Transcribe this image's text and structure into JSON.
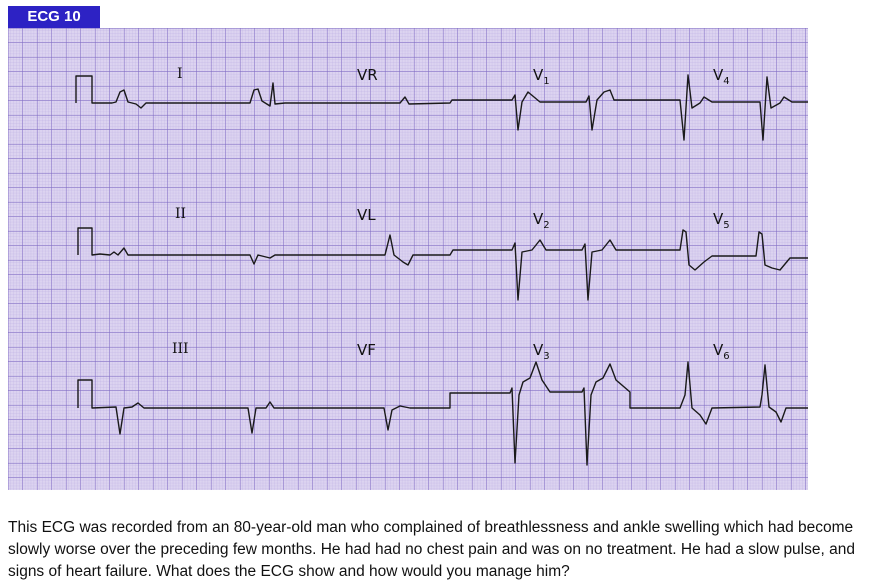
{
  "figure": {
    "title": "ECG 10",
    "colors": {
      "title_box": "#2d22c4",
      "paper": "#dcd3f0",
      "grid_minor": "#b8a9e0",
      "grid_major": "#7b66c0",
      "trace": "#1a1a1a"
    },
    "leads": [
      {
        "name": "I"
      },
      {
        "name": "VR"
      },
      {
        "name": "V",
        "sub": "1"
      },
      {
        "name": "V",
        "sub": "4"
      },
      {
        "name": "II"
      },
      {
        "name": "VL"
      },
      {
        "name": "V",
        "sub": "2"
      },
      {
        "name": "V",
        "sub": "5"
      },
      {
        "name": "III"
      },
      {
        "name": "VF"
      },
      {
        "name": "V",
        "sub": "3"
      },
      {
        "name": "V",
        "sub": "6"
      }
    ]
  },
  "caption": "This ECG was recorded from an 80-year-old man who complained of breathlessness and ankle swelling which had become slowly worse over the preceding few months. He had had no chest pain and was on no treatment. He had a slow pulse, and signs of heart failure. What does the ECG show and how would you manage him?"
}
